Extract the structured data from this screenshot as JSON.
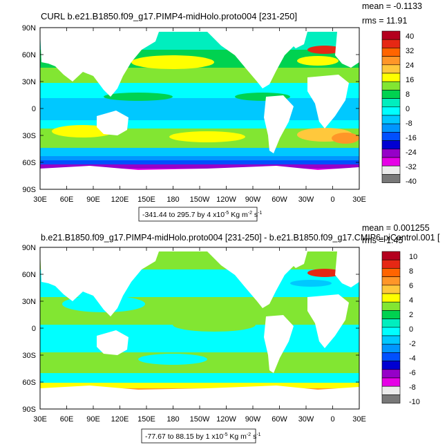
{
  "chart_data": [
    {
      "type": "heatmap",
      "title": "CURL b.e21.B1850.f09_g17.PIMP4-midHolo.proto004 [231-250]",
      "mean_text": "mean = -0.1133",
      "rms_text": "rms = 11.91",
      "range_text": "-341.44 to 295.7 by 4 x10",
      "unit_exp": "-5",
      "unit_mid": " Kg m",
      "unit_exp2": "-2",
      "unit_tail": " s",
      "unit_exp3": "-1",
      "y_ticks": [
        "90N",
        "60N",
        "30N",
        "0",
        "30S",
        "60S",
        "90S"
      ],
      "x_ticks": [
        "30E",
        "60E",
        "90E",
        "120E",
        "150E",
        "180",
        "150W",
        "120W",
        "90W",
        "60W",
        "30W",
        "0",
        "30E"
      ],
      "colorbar_labels": [
        "40",
        "32",
        "24",
        "16",
        "8",
        "0",
        "-8",
        "-16",
        "-24",
        "-32",
        "-40"
      ],
      "colorbar_colors": [
        "#b4001e",
        "#e62814",
        "#ff6400",
        "#ff9628",
        "#ffc83c",
        "#ffff00",
        "#82e632",
        "#00d250",
        "#00eebe",
        "#00ffff",
        "#00c8ff",
        "#0096ff",
        "#0050ff",
        "#0000d2",
        "#9600c8",
        "#e600e6",
        "#ebebeb",
        "#787878"
      ]
    },
    {
      "type": "heatmap",
      "title": "b.e21.B1850.f09_g17.PIMP4-midHolo.proto004 [231-250] - b.e21.B1850.f09_g17.CMIP6-piControl.001 [",
      "mean_text": "mean = 0.001255",
      "rms_text": "rms = 1.45",
      "range_text": "-77.67 to 88.15 by 1 x10",
      "unit_exp": "-5",
      "unit_mid": " Kg m",
      "unit_exp2": "-2",
      "unit_tail": " s",
      "unit_exp3": "-1",
      "y_ticks": [
        "90N",
        "60N",
        "30N",
        "0",
        "30S",
        "60S",
        "90S"
      ],
      "x_ticks": [
        "30E",
        "60E",
        "90E",
        "120E",
        "150E",
        "180",
        "150W",
        "120W",
        "90W",
        "60W",
        "30W",
        "0",
        "30E"
      ],
      "colorbar_labels": [
        "10",
        "8",
        "6",
        "4",
        "2",
        "0",
        "-2",
        "-4",
        "-6",
        "-8",
        "-10"
      ],
      "colorbar_colors": [
        "#b4001e",
        "#e62814",
        "#ff6400",
        "#ff9628",
        "#ffc83c",
        "#ffff00",
        "#82e632",
        "#00d250",
        "#00eebe",
        "#00ffff",
        "#00c8ff",
        "#0096ff",
        "#0050ff",
        "#0000d2",
        "#9600c8",
        "#e600e6",
        "#ebebeb",
        "#787878"
      ]
    }
  ]
}
